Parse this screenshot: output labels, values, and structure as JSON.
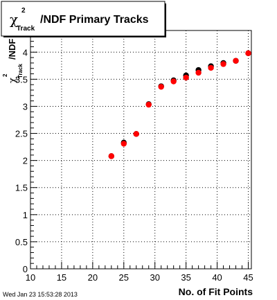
{
  "chart_data": {
    "type": "scatter",
    "title_suffix": "/NDF Primary Tracks",
    "title_symbol": "χ",
    "title_superscript": "2",
    "title_subscript": "Track",
    "ylabel_symbol": "χ",
    "ylabel_superscript": "2",
    "ylabel_subscript": "Track",
    "ylabel_suffix": "/NDF",
    "xlabel": "No. of Fit Points",
    "xlim": [
      10,
      45.5
    ],
    "ylim": [
      0,
      4.4
    ],
    "x_ticks": [
      "10",
      "15",
      "20",
      "25",
      "30",
      "35",
      "40",
      "45"
    ],
    "y_ticks": [
      "0",
      "0.5",
      "1",
      "1.5",
      "2",
      "2.5",
      "3",
      "3.5",
      "4"
    ],
    "grid": true,
    "series": [
      {
        "color": "#000000",
        "x": [
          23,
          25,
          27,
          29,
          31,
          33,
          35,
          37,
          39,
          41,
          43,
          45
        ],
        "y": [
          2.08,
          2.33,
          2.49,
          3.04,
          3.37,
          3.48,
          3.57,
          3.67,
          3.74,
          3.8,
          3.84,
          3.98
        ]
      },
      {
        "color": "#ff0000",
        "x": [
          23,
          25,
          27,
          29,
          31,
          33,
          35,
          37,
          39,
          41,
          43,
          45
        ],
        "y": [
          2.08,
          2.31,
          2.49,
          3.03,
          3.36,
          3.46,
          3.53,
          3.62,
          3.71,
          3.78,
          3.84,
          3.98
        ]
      }
    ]
  },
  "footer": {
    "timestamp": "Wed Jan 23 15:53:28 2013"
  }
}
